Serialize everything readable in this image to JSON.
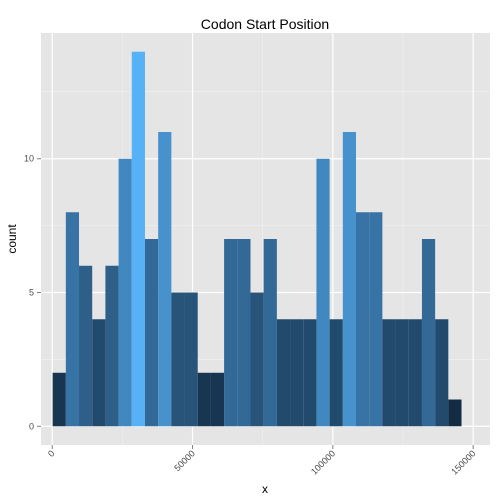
{
  "chart_data": {
    "type": "bar",
    "title": "Codon Start Position",
    "xlabel": "x",
    "ylabel": "count",
    "xlim": [
      -4000,
      156000
    ],
    "ylim": [
      -0.7,
      14.7
    ],
    "binwidth": 4700,
    "x_ticks": [
      0,
      50000,
      100000,
      150000
    ],
    "x_tick_labels": [
      "0",
      "50000",
      "100000",
      "150000"
    ],
    "y_ticks": [
      0,
      5,
      10
    ],
    "y_tick_labels": [
      "0",
      "5",
      "10"
    ],
    "grid": true,
    "panel_background": "#e5e5e5",
    "fill_scale": {
      "low": "#132b43",
      "high": "#56b1f7"
    },
    "bins": [
      {
        "x": 2500,
        "count": 2
      },
      {
        "x": 7200,
        "count": 8
      },
      {
        "x": 11900,
        "count": 6
      },
      {
        "x": 16600,
        "count": 4
      },
      {
        "x": 21300,
        "count": 6
      },
      {
        "x": 26000,
        "count": 10
      },
      {
        "x": 30700,
        "count": 14
      },
      {
        "x": 35400,
        "count": 7
      },
      {
        "x": 40100,
        "count": 11
      },
      {
        "x": 44800,
        "count": 5
      },
      {
        "x": 49500,
        "count": 5
      },
      {
        "x": 54200,
        "count": 2
      },
      {
        "x": 58900,
        "count": 2
      },
      {
        "x": 63600,
        "count": 7
      },
      {
        "x": 68300,
        "count": 7
      },
      {
        "x": 73000,
        "count": 5
      },
      {
        "x": 77700,
        "count": 7
      },
      {
        "x": 82400,
        "count": 4
      },
      {
        "x": 87100,
        "count": 4
      },
      {
        "x": 91800,
        "count": 4
      },
      {
        "x": 96500,
        "count": 10
      },
      {
        "x": 101200,
        "count": 4
      },
      {
        "x": 105900,
        "count": 11
      },
      {
        "x": 110600,
        "count": 8
      },
      {
        "x": 115300,
        "count": 8
      },
      {
        "x": 120000,
        "count": 4
      },
      {
        "x": 124700,
        "count": 4
      },
      {
        "x": 129400,
        "count": 4
      },
      {
        "x": 134100,
        "count": 7
      },
      {
        "x": 138800,
        "count": 4
      },
      {
        "x": 143500,
        "count": 1
      }
    ]
  }
}
